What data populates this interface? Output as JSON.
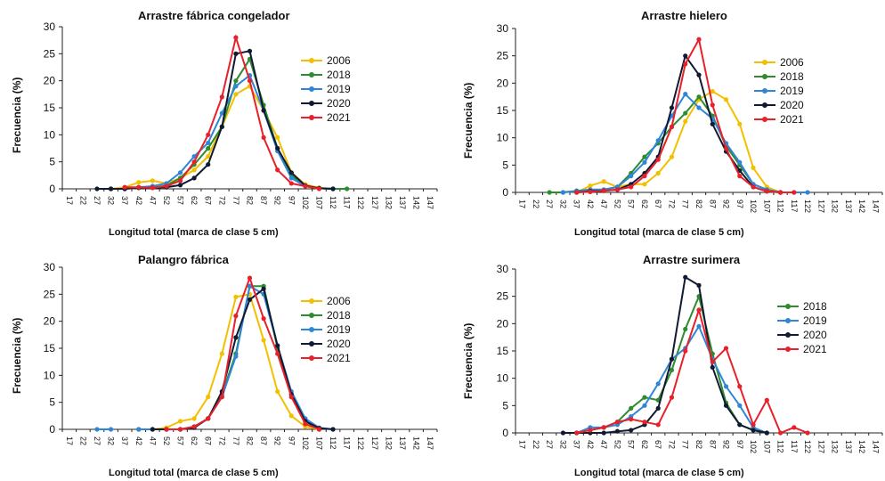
{
  "colors": {
    "2006": "#F2C000",
    "2018": "#2E8B2E",
    "2019": "#2F86D6",
    "2020": "#111A33",
    "2021": "#E8202A"
  },
  "chart_data": [
    {
      "type": "line",
      "title": "Arrastre fábrica congelador",
      "xlabel": "Longitud total (marca de clase 5 cm)",
      "ylabel": "Frecuencia (%)",
      "ylim": [
        0,
        30
      ],
      "yticks": [
        "0",
        "5",
        "10",
        "15",
        "20",
        "25",
        "30"
      ],
      "grid": false,
      "legend": "right",
      "categories": [
        "17",
        "22",
        "27",
        "32",
        "37",
        "42",
        "47",
        "52",
        "57",
        "62",
        "67",
        "72",
        "77",
        "82",
        "87",
        "92",
        "97",
        "102",
        "107",
        "112",
        "117",
        "122",
        "127",
        "132",
        "137",
        "142",
        "147"
      ],
      "series": [
        {
          "name": "2006",
          "values": [
            null,
            null,
            null,
            0,
            0.3,
            1.2,
            1.5,
            1.0,
            2.0,
            3.5,
            6.0,
            11.5,
            17.5,
            19.0,
            14.5,
            9.5,
            3.0,
            0.8,
            0.2,
            0,
            null,
            null,
            null,
            null,
            null,
            null,
            null
          ]
        },
        {
          "name": "2018",
          "values": [
            null,
            null,
            null,
            0,
            0,
            0.2,
            0.2,
            0.6,
            2.0,
            4.5,
            7.5,
            11.5,
            20.0,
            24.0,
            15.5,
            7.5,
            2.5,
            0.5,
            0.1,
            0,
            0,
            null,
            null,
            null,
            null,
            null,
            null
          ]
        },
        {
          "name": "2019",
          "values": [
            null,
            null,
            null,
            0,
            0,
            0.3,
            0.5,
            1.0,
            3.0,
            6.0,
            8.5,
            14.0,
            19.0,
            21.0,
            14.5,
            7.0,
            2.0,
            0.5,
            0.1,
            0,
            null,
            null,
            null,
            null,
            null,
            null,
            null
          ]
        },
        {
          "name": "2020",
          "values": [
            null,
            null,
            0,
            0,
            0,
            0.2,
            0.2,
            0.3,
            0.7,
            2.0,
            4.5,
            11.5,
            25.0,
            25.5,
            14.5,
            7.5,
            3.0,
            0.6,
            0.1,
            0,
            null,
            null,
            null,
            null,
            null,
            null,
            null
          ]
        },
        {
          "name": "2021",
          "values": [
            null,
            null,
            null,
            null,
            0.3,
            0.3,
            0.2,
            0.5,
            1.5,
            5.0,
            10.0,
            17.0,
            28.0,
            20.0,
            9.5,
            3.5,
            1.0,
            0.5,
            0,
            null,
            null,
            null,
            null,
            null,
            null,
            null,
            null
          ]
        }
      ]
    },
    {
      "type": "line",
      "title": "Arrastre hielero",
      "xlabel": "Longitud total (marca de clase 5 cm)",
      "ylabel": "Frecuencia (%)",
      "ylim": [
        0,
        30
      ],
      "yticks": [
        "0",
        "5",
        "10",
        "15",
        "20",
        "25",
        "30"
      ],
      "grid": false,
      "legend": "right",
      "categories": [
        "17",
        "22",
        "27",
        "32",
        "37",
        "42",
        "47",
        "52",
        "57",
        "62",
        "67",
        "72",
        "77",
        "82",
        "87",
        "92",
        "97",
        "102",
        "107",
        "112",
        "117",
        "122",
        "127",
        "132",
        "137",
        "142",
        "147"
      ],
      "series": [
        {
          "name": "2006",
          "values": [
            null,
            null,
            null,
            null,
            0,
            1.2,
            2.0,
            1.0,
            1.5,
            1.5,
            3.5,
            6.5,
            13.0,
            17.0,
            18.5,
            17.0,
            12.5,
            4.5,
            1.0,
            0,
            0,
            null,
            null,
            null,
            null,
            null,
            null
          ]
        },
        {
          "name": "2018",
          "values": [
            null,
            null,
            0,
            0,
            0.3,
            0.5,
            0.5,
            1.0,
            3.5,
            6.5,
            9.0,
            12.0,
            14.5,
            17.5,
            14.0,
            8.5,
            5.0,
            1.5,
            0.5,
            0,
            null,
            null,
            null,
            null,
            null,
            null,
            null
          ]
        },
        {
          "name": "2019",
          "values": [
            null,
            null,
            null,
            0,
            0.2,
            0.5,
            0.5,
            1.0,
            3.0,
            5.5,
            9.5,
            14.0,
            18.0,
            15.5,
            13.5,
            9.0,
            5.5,
            1.5,
            0.5,
            0,
            0,
            0,
            null,
            null,
            null,
            null,
            null
          ]
        },
        {
          "name": "2020",
          "values": [
            null,
            null,
            null,
            null,
            0,
            0.2,
            0.3,
            0.5,
            1.5,
            3.5,
            6.5,
            15.5,
            25.0,
            21.5,
            12.5,
            7.5,
            4.0,
            1.0,
            0.2,
            0,
            null,
            null,
            null,
            null,
            null,
            null,
            null
          ]
        },
        {
          "name": "2021",
          "values": [
            null,
            null,
            null,
            null,
            0,
            0.1,
            0.3,
            0.5,
            1.0,
            3.0,
            6.0,
            12.0,
            23.5,
            28.0,
            16.0,
            8.0,
            3.0,
            1.0,
            0.2,
            0,
            0,
            null,
            null,
            null,
            null,
            null,
            null
          ]
        }
      ]
    },
    {
      "type": "line",
      "title": "Palangro fábrica",
      "xlabel": "Longitud total (marca de clase 5 cm)",
      "ylabel": "Frecuencia (%)",
      "ylim": [
        0,
        30
      ],
      "yticks": [
        "0",
        "5",
        "10",
        "15",
        "20",
        "25",
        "30"
      ],
      "grid": false,
      "legend": "right",
      "categories": [
        "17",
        "22",
        "27",
        "32",
        "37",
        "42",
        "47",
        "52",
        "57",
        "62",
        "67",
        "72",
        "77",
        "82",
        "87",
        "92",
        "97",
        "102",
        "107",
        "112",
        "117",
        "122",
        "127",
        "132",
        "137",
        "142",
        "147"
      ],
      "series": [
        {
          "name": "2006",
          "values": [
            null,
            null,
            null,
            null,
            null,
            0,
            0,
            0.3,
            1.5,
            2.0,
            6.0,
            14.0,
            24.5,
            25.0,
            16.5,
            7.0,
            2.5,
            0.5,
            0,
            null,
            null,
            null,
            null,
            null,
            null,
            null,
            null
          ]
        },
        {
          "name": "2018",
          "values": [
            null,
            null,
            null,
            null,
            null,
            0,
            0,
            0,
            0,
            0.5,
            2.0,
            6.5,
            14.0,
            26.5,
            26.5,
            15.0,
            6.0,
            1.5,
            0,
            null,
            null,
            null,
            null,
            null,
            null,
            null,
            null
          ]
        },
        {
          "name": "2019",
          "values": [
            null,
            null,
            0,
            0,
            null,
            0,
            0,
            0,
            0,
            0.5,
            2.0,
            6.0,
            13.5,
            26.5,
            25.0,
            15.5,
            7.0,
            2.0,
            0.3,
            0,
            null,
            null,
            null,
            null,
            null,
            null,
            null
          ]
        },
        {
          "name": "2020",
          "values": [
            null,
            null,
            null,
            null,
            null,
            null,
            0,
            0,
            0,
            0.3,
            2.0,
            7.0,
            17.0,
            24.0,
            26.0,
            15.5,
            6.5,
            1.5,
            0.2,
            0,
            null,
            null,
            null,
            null,
            null,
            null,
            null
          ]
        },
        {
          "name": "2021",
          "values": [
            null,
            null,
            null,
            null,
            null,
            null,
            null,
            0,
            0,
            0.5,
            2.0,
            6.0,
            21.0,
            28.0,
            20.5,
            14.0,
            6.0,
            1.0,
            0,
            null,
            null,
            null,
            null,
            null,
            null,
            null,
            null
          ]
        }
      ]
    },
    {
      "type": "line",
      "title": "Arrastre surimera",
      "xlabel": "Longitud total (marca de clase 5 cm)",
      "ylabel": "Frecuencia (%)",
      "ylim": [
        0,
        30
      ],
      "yticks": [
        "0",
        "5",
        "10",
        "15",
        "20",
        "25",
        "30"
      ],
      "grid": false,
      "legend": "right",
      "categories": [
        "17",
        "22",
        "27",
        "32",
        "37",
        "42",
        "47",
        "52",
        "57",
        "62",
        "67",
        "72",
        "77",
        "82",
        "87",
        "92",
        "97",
        "102",
        "107",
        "112",
        "117",
        "122",
        "127",
        "132",
        "137",
        "142",
        "147"
      ],
      "series": [
        {
          "name": "2018",
          "values": [
            null,
            null,
            null,
            null,
            null,
            0.5,
            1.0,
            2.0,
            4.5,
            6.5,
            6.0,
            11.5,
            19.0,
            25.0,
            14.5,
            5.5,
            1.5,
            0.5,
            0,
            null,
            null,
            null,
            null,
            null,
            null,
            null,
            null
          ]
        },
        {
          "name": "2019",
          "values": [
            null,
            null,
            null,
            null,
            0,
            1.0,
            1.0,
            1.5,
            3.0,
            5.0,
            9.0,
            13.5,
            15.5,
            19.5,
            13.5,
            8.5,
            5.0,
            1.0,
            0,
            null,
            null,
            null,
            null,
            null,
            null,
            null,
            null
          ]
        },
        {
          "name": "2020",
          "values": [
            null,
            null,
            null,
            0,
            0,
            0,
            0,
            0.3,
            0.5,
            1.5,
            4.5,
            13.5,
            28.5,
            27.0,
            12.0,
            5.0,
            1.5,
            0.5,
            0,
            null,
            null,
            null,
            null,
            null,
            null,
            null,
            null
          ]
        },
        {
          "name": "2021",
          "values": [
            null,
            null,
            null,
            null,
            0,
            0.5,
            1.0,
            2.0,
            2.5,
            2.0,
            1.5,
            6.5,
            15.0,
            22.5,
            13.0,
            15.5,
            8.5,
            1.5,
            6.0,
            0,
            1.0,
            0,
            null,
            null,
            null,
            null,
            null
          ]
        }
      ]
    }
  ]
}
